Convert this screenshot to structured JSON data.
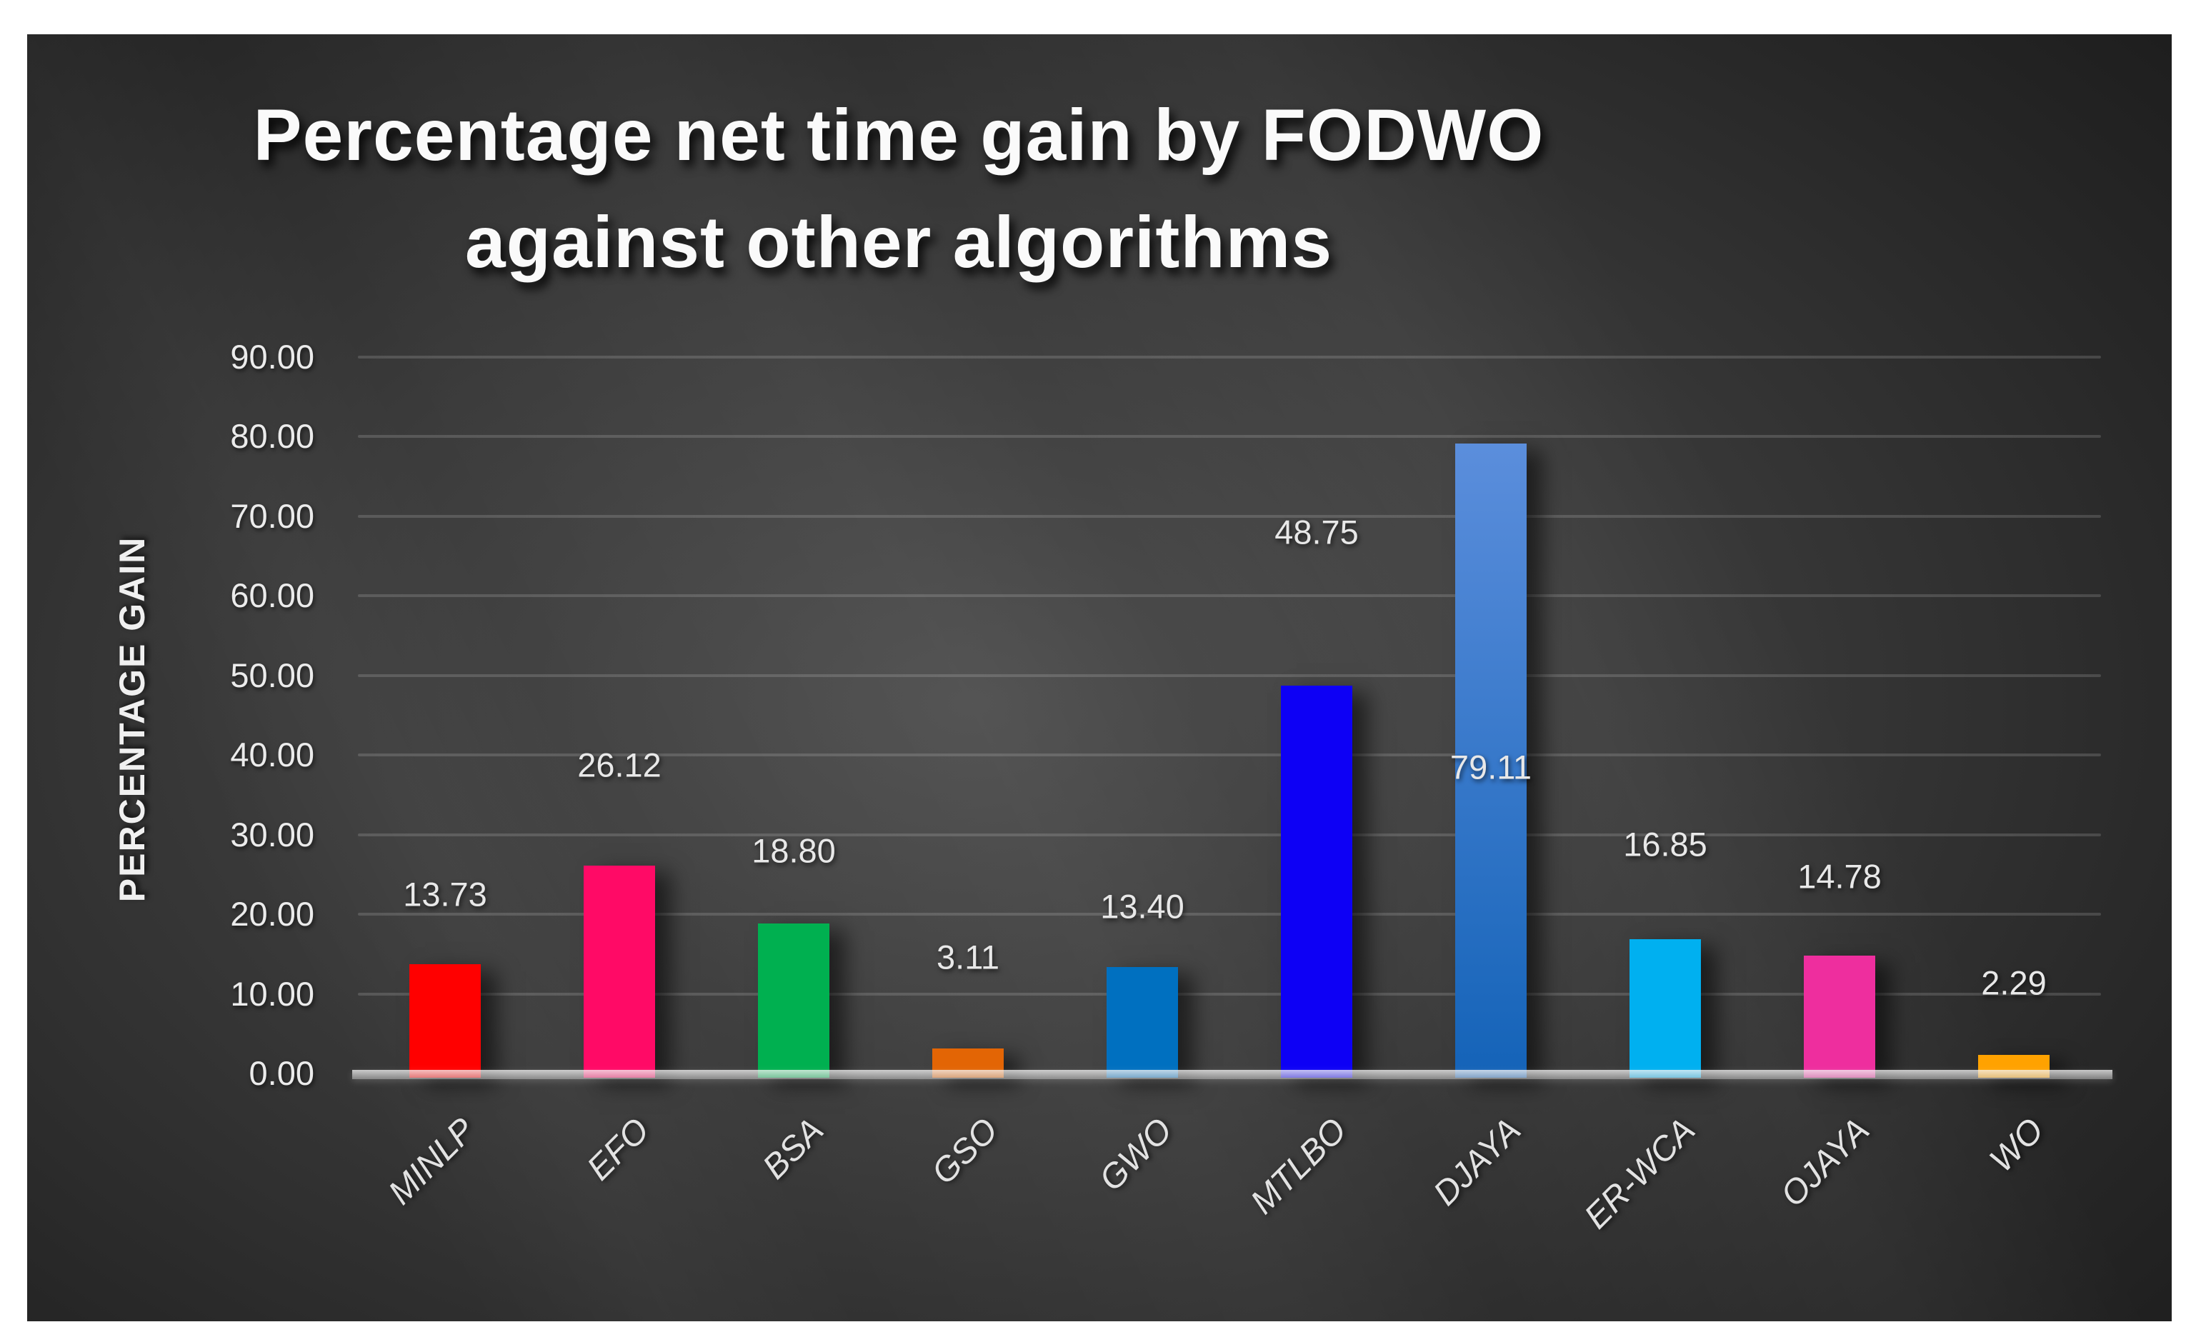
{
  "chart_title": {
    "line1": "Percentage net time gain by FODWO",
    "line2": "against other algorithms"
  },
  "y_axis": {
    "title": "PERCENTAGE GAIN",
    "tick_labels": [
      "90.00",
      "80.00",
      "70.00",
      "60.00",
      "50.00",
      "40.00",
      "30.00",
      "20.00",
      "10.00",
      "0.00"
    ]
  },
  "chart_data": {
    "type": "bar",
    "title": "Percentage net time gain by FODWO against other algorithms",
    "xlabel": "",
    "ylabel": "PERCENTAGE GAIN",
    "ylim": [
      0,
      90
    ],
    "y_tick_step": 10,
    "grid": true,
    "legend": false,
    "categories": [
      "MINLP",
      "EFO",
      "BSA",
      "GSO",
      "GWO",
      "MTLBO",
      "DJAYA",
      "ER-WCA",
      "OJAYA",
      "WO"
    ],
    "values": [
      13.73,
      26.12,
      18.8,
      3.11,
      13.4,
      48.75,
      79.11,
      16.85,
      14.78,
      2.29
    ],
    "value_labels": [
      "13.73",
      "26.12",
      "18.80",
      "3.11",
      "13.40",
      "48.75",
      "79.11",
      "16.85",
      "14.78",
      "2.29"
    ],
    "bar_colors": [
      {
        "color": "#FF0000"
      },
      {
        "color": "#FF0A66"
      },
      {
        "color": "#00B050"
      },
      {
        "color": "#E36505"
      },
      {
        "color": "#0070C0"
      },
      {
        "color": "#0D00F5"
      },
      {
        "color_top": "#5B8EDC",
        "color_bottom": "#1463B8"
      },
      {
        "color": "#00B0F0"
      },
      {
        "color": "#EE2E9E"
      },
      {
        "color": "#FFA200"
      }
    ],
    "label_y_positions": [
      22.5,
      38.8,
      28.0,
      14.6,
      21.0,
      68.0,
      38.5,
      28.8,
      24.8,
      11.4
    ]
  },
  "colors": {
    "page_background": "#FFFFFF",
    "chart_background_center": "#4F4F4F",
    "chart_background_edge": "#1C1C1C",
    "gridline": "rgba(255,255,255,0.15)",
    "axis_line": "#DCDCDC",
    "text": "#EBEBEB"
  }
}
